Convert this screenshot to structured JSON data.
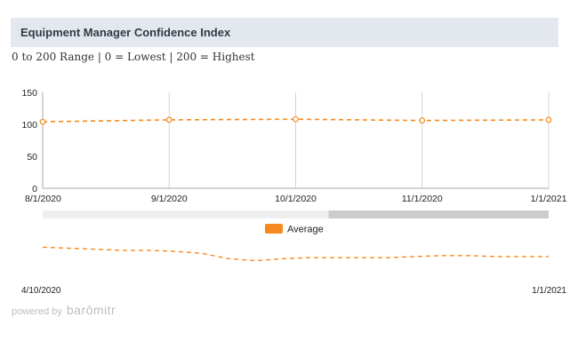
{
  "header": {
    "title": "Equipment Manager Confidence Index",
    "subtitle": "0 to 200 Range | 0 = Lowest | 200 = Highest"
  },
  "colors": {
    "series": "#f58a1f",
    "header_bg": "#e3e8ee",
    "grid": "#d4d4d4",
    "navigator_mask": "#cccccc",
    "navigator_bg": "#efefef"
  },
  "chart_data": {
    "type": "line",
    "title": "",
    "xlabel": "",
    "ylabel": "",
    "x_tick_labels": [
      "8/1/2020",
      "9/1/2020",
      "10/1/2020",
      "11/1/2020",
      "1/1/2021"
    ],
    "y_tick_labels": [
      "0",
      "50",
      "100",
      "150"
    ],
    "ylim": [
      0,
      150
    ],
    "grid": "vertical",
    "line_style": "dashed",
    "series": [
      {
        "name": "Average",
        "x": [
          "8/1/2020",
          "9/1/2020",
          "10/1/2020",
          "11/1/2020",
          "1/1/2021"
        ],
        "values": [
          104,
          107,
          108,
          106,
          107
        ]
      }
    ],
    "legend": {
      "placement": "bottom-center",
      "label": "Average"
    },
    "navigator": {
      "start_label": "4/10/2020",
      "end_label": "1/1/2021",
      "selected_range_fraction": [
        0,
        0.565
      ],
      "series_values": [
        110,
        109,
        108,
        107,
        107,
        106,
        104,
        99,
        97,
        99,
        100,
        100,
        100,
        100,
        101,
        102,
        102,
        101,
        101,
        101
      ]
    }
  },
  "footer": {
    "powered_by": "powered by",
    "brand": "barômitr"
  }
}
